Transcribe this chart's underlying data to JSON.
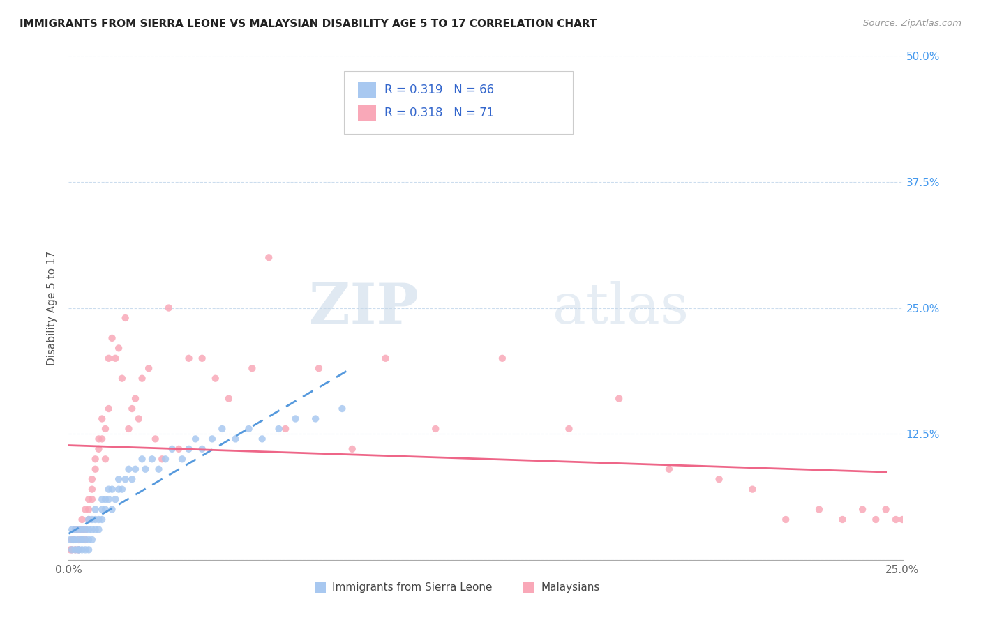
{
  "title": "IMMIGRANTS FROM SIERRA LEONE VS MALAYSIAN DISABILITY AGE 5 TO 17 CORRELATION CHART",
  "source": "Source: ZipAtlas.com",
  "ylabel": "Disability Age 5 to 17",
  "xlim": [
    0.0,
    0.25
  ],
  "ylim": [
    0.0,
    0.5
  ],
  "r1": 0.319,
  "n1": 66,
  "r2": 0.318,
  "n2": 71,
  "scatter1_color": "#a8c8f0",
  "scatter2_color": "#f9a8b8",
  "line1_color": "#5599dd",
  "line2_color": "#ee6688",
  "background_color": "#ffffff",
  "legend_label1": "Immigrants from Sierra Leone",
  "legend_label2": "Malaysians",
  "sierra_leone_x": [
    0.0005,
    0.001,
    0.001,
    0.0015,
    0.002,
    0.002,
    0.002,
    0.003,
    0.003,
    0.003,
    0.003,
    0.004,
    0.004,
    0.004,
    0.004,
    0.005,
    0.005,
    0.005,
    0.006,
    0.006,
    0.006,
    0.006,
    0.007,
    0.007,
    0.007,
    0.008,
    0.008,
    0.008,
    0.009,
    0.009,
    0.01,
    0.01,
    0.01,
    0.011,
    0.011,
    0.012,
    0.012,
    0.013,
    0.013,
    0.014,
    0.015,
    0.015,
    0.016,
    0.017,
    0.018,
    0.019,
    0.02,
    0.022,
    0.023,
    0.025,
    0.027,
    0.029,
    0.031,
    0.034,
    0.036,
    0.038,
    0.04,
    0.043,
    0.046,
    0.05,
    0.054,
    0.058,
    0.063,
    0.068,
    0.074,
    0.082
  ],
  "sierra_leone_y": [
    0.02,
    0.01,
    0.03,
    0.02,
    0.01,
    0.03,
    0.02,
    0.01,
    0.02,
    0.03,
    0.01,
    0.01,
    0.02,
    0.03,
    0.02,
    0.01,
    0.02,
    0.03,
    0.02,
    0.01,
    0.03,
    0.04,
    0.02,
    0.03,
    0.04,
    0.03,
    0.04,
    0.05,
    0.03,
    0.04,
    0.04,
    0.05,
    0.06,
    0.05,
    0.06,
    0.06,
    0.07,
    0.05,
    0.07,
    0.06,
    0.07,
    0.08,
    0.07,
    0.08,
    0.09,
    0.08,
    0.09,
    0.1,
    0.09,
    0.1,
    0.09,
    0.1,
    0.11,
    0.1,
    0.11,
    0.12,
    0.11,
    0.12,
    0.13,
    0.12,
    0.13,
    0.12,
    0.13,
    0.14,
    0.14,
    0.15
  ],
  "malaysian_x": [
    0.0005,
    0.001,
    0.001,
    0.0015,
    0.002,
    0.002,
    0.003,
    0.003,
    0.003,
    0.004,
    0.004,
    0.004,
    0.005,
    0.005,
    0.005,
    0.006,
    0.006,
    0.006,
    0.007,
    0.007,
    0.007,
    0.008,
    0.008,
    0.009,
    0.009,
    0.01,
    0.01,
    0.011,
    0.011,
    0.012,
    0.012,
    0.013,
    0.014,
    0.015,
    0.016,
    0.017,
    0.018,
    0.019,
    0.02,
    0.021,
    0.022,
    0.024,
    0.026,
    0.028,
    0.03,
    0.033,
    0.036,
    0.04,
    0.044,
    0.048,
    0.055,
    0.06,
    0.065,
    0.075,
    0.085,
    0.095,
    0.11,
    0.13,
    0.15,
    0.165,
    0.18,
    0.195,
    0.205,
    0.215,
    0.225,
    0.232,
    0.238,
    0.242,
    0.245,
    0.248,
    0.25
  ],
  "malaysian_y": [
    0.01,
    0.02,
    0.01,
    0.02,
    0.01,
    0.03,
    0.02,
    0.01,
    0.03,
    0.02,
    0.03,
    0.04,
    0.02,
    0.03,
    0.05,
    0.04,
    0.06,
    0.05,
    0.07,
    0.08,
    0.06,
    0.09,
    0.1,
    0.11,
    0.12,
    0.12,
    0.14,
    0.13,
    0.1,
    0.15,
    0.2,
    0.22,
    0.2,
    0.21,
    0.18,
    0.24,
    0.13,
    0.15,
    0.16,
    0.14,
    0.18,
    0.19,
    0.12,
    0.1,
    0.25,
    0.11,
    0.2,
    0.2,
    0.18,
    0.16,
    0.19,
    0.3,
    0.13,
    0.19,
    0.11,
    0.2,
    0.13,
    0.2,
    0.13,
    0.16,
    0.09,
    0.08,
    0.07,
    0.04,
    0.05,
    0.04,
    0.05,
    0.04,
    0.05,
    0.04,
    0.04
  ]
}
